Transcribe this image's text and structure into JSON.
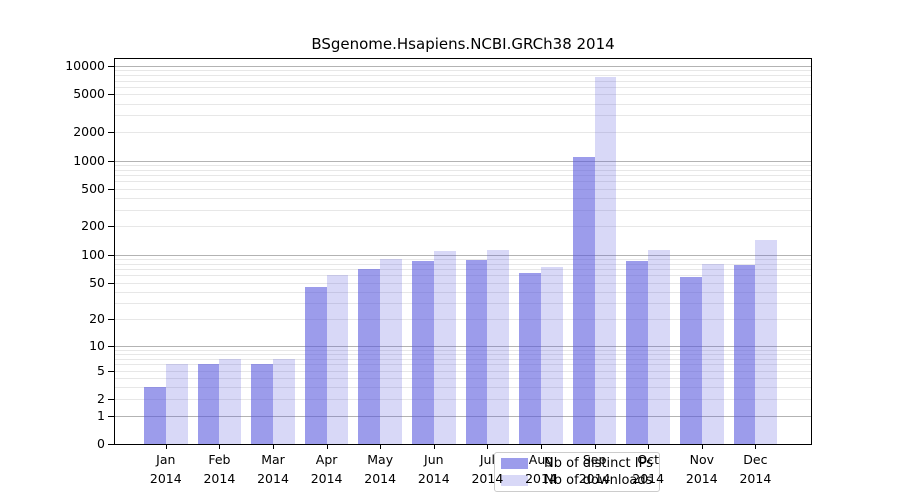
{
  "chart_data": {
    "type": "bar",
    "title": "BSgenome.Hsapiens.NCBI.GRCh38 2014",
    "months": [
      "Jan",
      "Feb",
      "Mar",
      "Apr",
      "May",
      "Jun",
      "Jul",
      "Aug",
      "Sep",
      "Oct",
      "Nov",
      "Dec"
    ],
    "year": "2014",
    "series": [
      {
        "name": "Nb of distinct IPs",
        "values": [
          3,
          6,
          6,
          45,
          70,
          85,
          88,
          64,
          1080,
          85,
          57,
          77
        ]
      },
      {
        "name": "Nb of downloads",
        "values": [
          6,
          7,
          7,
          60,
          90,
          110,
          112,
          74,
          7600,
          113,
          79,
          145
        ]
      }
    ],
    "y_ticks": [
      0,
      1,
      2,
      5,
      10,
      20,
      50,
      100,
      200,
      500,
      1000,
      2000,
      5000,
      10000
    ],
    "y_scale": "log1p",
    "ylim": [
      0,
      10800
    ],
    "grid": true,
    "legend_position": "bottom-center",
    "colors": {
      "ips_bar": "rgba(85,85,221,0.58)",
      "downloads_bar": "rgba(85,85,221,0.23)",
      "ips_bar_hex": "#9c9ceb",
      "downloads_bar_hex": "#d8d8f7",
      "grid_major": "#b3b3b3",
      "grid_minor": "#e7e7e7",
      "axis": "#000000",
      "background": "#ffffff"
    }
  }
}
